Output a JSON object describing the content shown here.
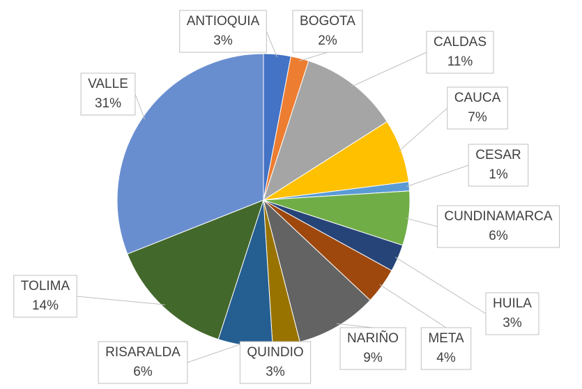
{
  "chart_data": {
    "type": "pie",
    "categories": [
      "ANTIOQUIA",
      "BOGOTA",
      "CALDAS",
      "CAUCA",
      "CESAR",
      "CUNDINAMARCA",
      "HUILA",
      "META",
      "NARIÑO",
      "QUINDIO",
      "RISARALDA",
      "TOLIMA",
      "VALLE"
    ],
    "values": [
      3,
      2,
      11,
      7,
      1,
      6,
      3,
      4,
      9,
      3,
      6,
      14,
      31
    ],
    "value_labels": [
      "3%",
      "2%",
      "11%",
      "7%",
      "1%",
      "6%",
      "3%",
      "4%",
      "9%",
      "3%",
      "6%",
      "14%",
      "31%"
    ],
    "colors": [
      "#4472c4",
      "#ed7d31",
      "#a5a5a5",
      "#ffc000",
      "#5b9bd5",
      "#70ad47",
      "#264478",
      "#9e480e",
      "#636363",
      "#997300",
      "#255e91",
      "#43682b",
      "#698ed0"
    ]
  }
}
